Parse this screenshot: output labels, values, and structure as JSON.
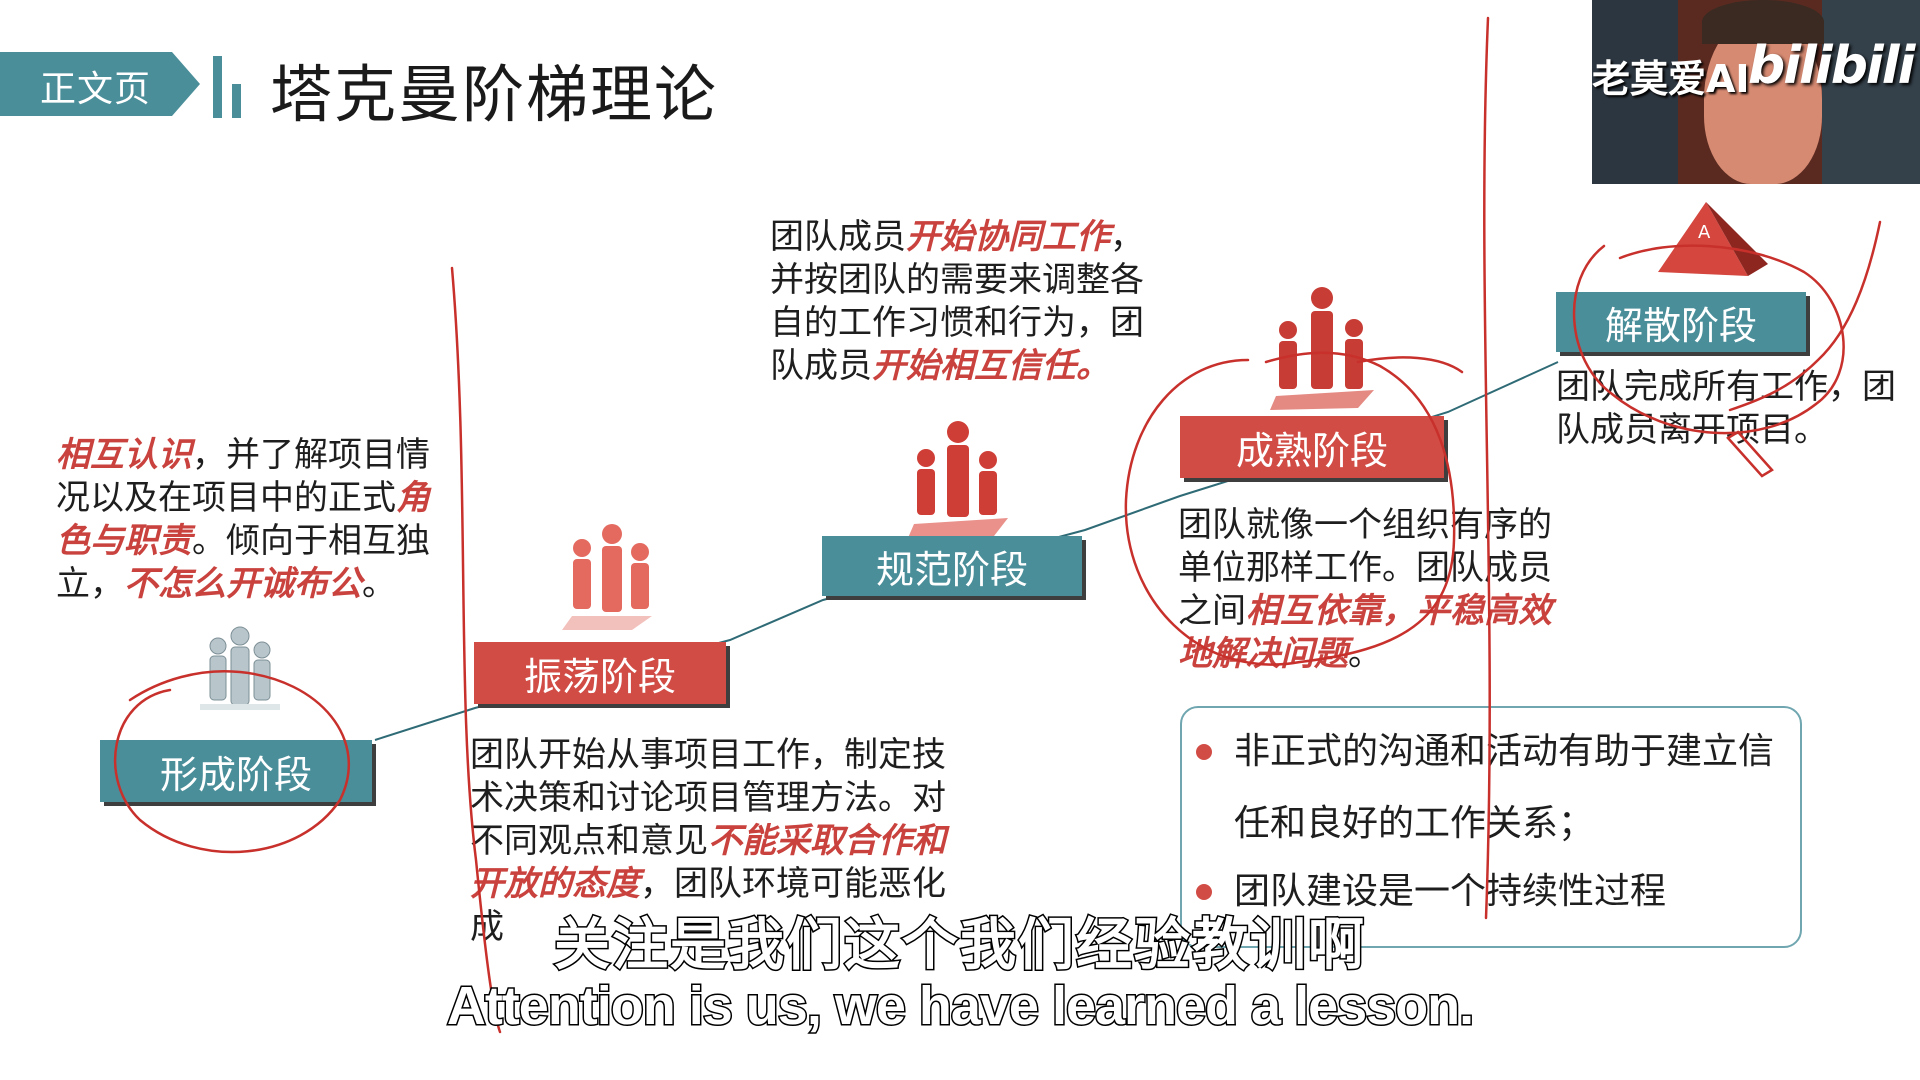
{
  "header": {
    "section_tag": "正文页",
    "title": "塔克曼阶梯理论"
  },
  "stages": {
    "forming": {
      "label": "形成阶段",
      "desc": [
        {
          "t": "相互认识",
          "em": true
        },
        {
          "t": "，并了解项目情况以及在项目中的正式",
          "em": false
        },
        {
          "t": "角色与职责",
          "em": true
        },
        {
          "t": "。倾向于相互独立，",
          "em": false
        },
        {
          "t": "不怎么开诚布公",
          "em": true
        },
        {
          "t": "。",
          "em": false
        }
      ]
    },
    "storming": {
      "label": "振荡阶段",
      "desc": [
        {
          "t": "团队开始从事项目工作，制定技术决策和讨论项目管理方法。对不同观点和意见",
          "em": false
        },
        {
          "t": "不能采取合作和开放的态度",
          "em": true
        },
        {
          "t": "，团队环境可能恶化成",
          "em": false
        }
      ]
    },
    "norming": {
      "label": "规范阶段",
      "desc": [
        {
          "t": "团队成员",
          "em": false
        },
        {
          "t": "开始协同工作",
          "em": true
        },
        {
          "t": "，并按团队的需要来调整各自的工作习惯和行为，团队成员",
          "em": false
        },
        {
          "t": "开始相互信任。",
          "em": true
        }
      ]
    },
    "performing": {
      "label": "成熟阶段",
      "desc": [
        {
          "t": "团队就像一个组织有序的单位那样工作。团队成员之间",
          "em": false
        },
        {
          "t": "相互依靠，平稳高效地解决问题",
          "em": true
        },
        {
          "t": "。",
          "em": false
        }
      ]
    },
    "adjourning": {
      "label": "解散阶段",
      "desc": [
        {
          "t": "团队完成所有工作，团队成员离开项目。",
          "em": false
        }
      ]
    }
  },
  "bullets": [
    "非正式的沟通和活动有助于建立信任和良好的工作关系；",
    "团队建设是一个持续性过程"
  ],
  "webcam": {
    "channel_name": "老莫爱AI",
    "logo": "bilibili"
  },
  "subtitles": {
    "zh": "关注是我们这个我们经验教训啊",
    "en": "Attention is us, we have learned a lesson."
  },
  "colors": {
    "teal": "#4a8e9a",
    "red": "#d24c46",
    "annotation_ink": "#c8302c"
  }
}
